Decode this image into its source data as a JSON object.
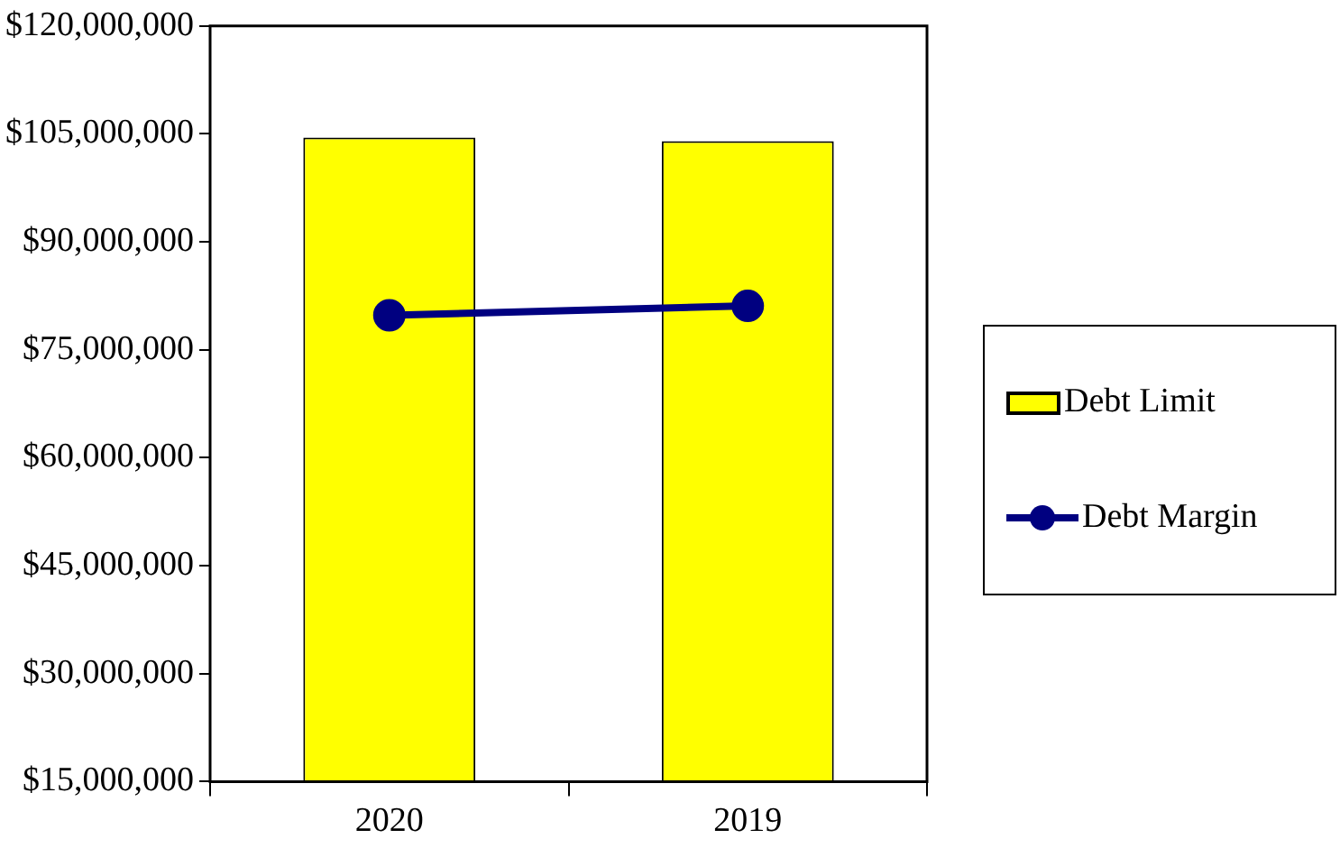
{
  "chart_data": {
    "type": "bar",
    "categories": [
      "2020",
      "2019"
    ],
    "series": [
      {
        "name": "Debt Limit",
        "color": "#ffff00",
        "values": [
          104500000,
          104000000
        ]
      },
      {
        "name": "Debt Margin",
        "type": "line",
        "color": "#000080",
        "values": [
          79800000,
          81100000
        ]
      }
    ],
    "ylim": [
      15000000,
      120000000
    ],
    "yticks": [
      {
        "value": 15000000,
        "label": "$15,000,000"
      },
      {
        "value": 30000000,
        "label": "$30,000,000"
      },
      {
        "value": 45000000,
        "label": "$45,000,000"
      },
      {
        "value": 60000000,
        "label": "$60,000,000"
      },
      {
        "value": 75000000,
        "label": "$75,000,000"
      },
      {
        "value": 90000000,
        "label": "$90,000,000"
      },
      {
        "value": 105000000,
        "label": "$105,000,000"
      },
      {
        "value": 120000000,
        "label": "$120,000,000"
      }
    ],
    "grid": false,
    "legend": "right",
    "marker": "circle",
    "line_style": "solid"
  }
}
